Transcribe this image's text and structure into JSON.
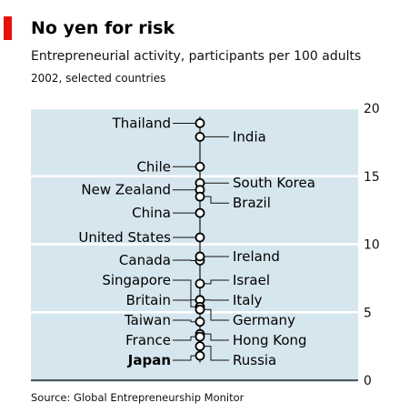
{
  "header": {
    "title": "No yen for risk",
    "subtitle": "Entrepreneurial activity, participants per 100 adults",
    "subtitle2": "2002, selected countries"
  },
  "footer": {
    "source": "Source: Global Entrepreneurship Monitor"
  },
  "colors": {
    "flag": "#e3120b",
    "plot_background": "#d6e6ee",
    "gridline": "#ffffff",
    "marker_fill": "#ffffff",
    "marker_stroke": "#000000"
  },
  "chart_data": {
    "type": "scatter",
    "title": "No yen for risk",
    "subtitle": "Entrepreneurial activity, participants per 100 adults",
    "xlabel": "",
    "ylabel": "",
    "ylim": [
      0,
      20
    ],
    "yticks": [
      0,
      5,
      10,
      15,
      20
    ],
    "ytick_labels": [
      "0",
      "5",
      "10",
      "15",
      "20"
    ],
    "grid": true,
    "axis_side": "right",
    "points": [
      {
        "label": "Thailand",
        "value": 18.9,
        "side": "left",
        "highlight": false
      },
      {
        "label": "India",
        "value": 17.9,
        "side": "right",
        "highlight": false
      },
      {
        "label": "Chile",
        "value": 15.7,
        "side": "left",
        "highlight": false
      },
      {
        "label": "South Korea",
        "value": 14.5,
        "side": "right",
        "highlight": false
      },
      {
        "label": "New Zealand",
        "value": 14.0,
        "side": "left",
        "highlight": false
      },
      {
        "label": "Brazil",
        "value": 13.5,
        "side": "right",
        "highlight": false
      },
      {
        "label": "China",
        "value": 12.3,
        "side": "left",
        "highlight": false
      },
      {
        "label": "United States",
        "value": 10.5,
        "side": "left",
        "highlight": false
      },
      {
        "label": "Canada",
        "value": 8.8,
        "side": "left",
        "highlight": false
      },
      {
        "label": "Ireland",
        "value": 9.1,
        "side": "right",
        "highlight": false
      },
      {
        "label": "Israel",
        "value": 7.1,
        "side": "right",
        "highlight": false
      },
      {
        "label": "Singapore",
        "value": 5.9,
        "side": "left",
        "highlight": false
      },
      {
        "label": "Italy",
        "value": 5.9,
        "side": "right",
        "highlight": false
      },
      {
        "label": "Britain",
        "value": 5.4,
        "side": "left",
        "highlight": false
      },
      {
        "label": "Germany",
        "value": 5.2,
        "side": "right",
        "highlight": false
      },
      {
        "label": "Taiwan",
        "value": 4.3,
        "side": "left",
        "highlight": false
      },
      {
        "label": "Hong Kong",
        "value": 3.4,
        "side": "right",
        "highlight": false
      },
      {
        "label": "France",
        "value": 3.2,
        "side": "left",
        "highlight": false
      },
      {
        "label": "Russia",
        "value": 2.5,
        "side": "right",
        "highlight": false
      },
      {
        "label": "Japan",
        "value": 1.8,
        "side": "left",
        "highlight": true
      }
    ]
  }
}
